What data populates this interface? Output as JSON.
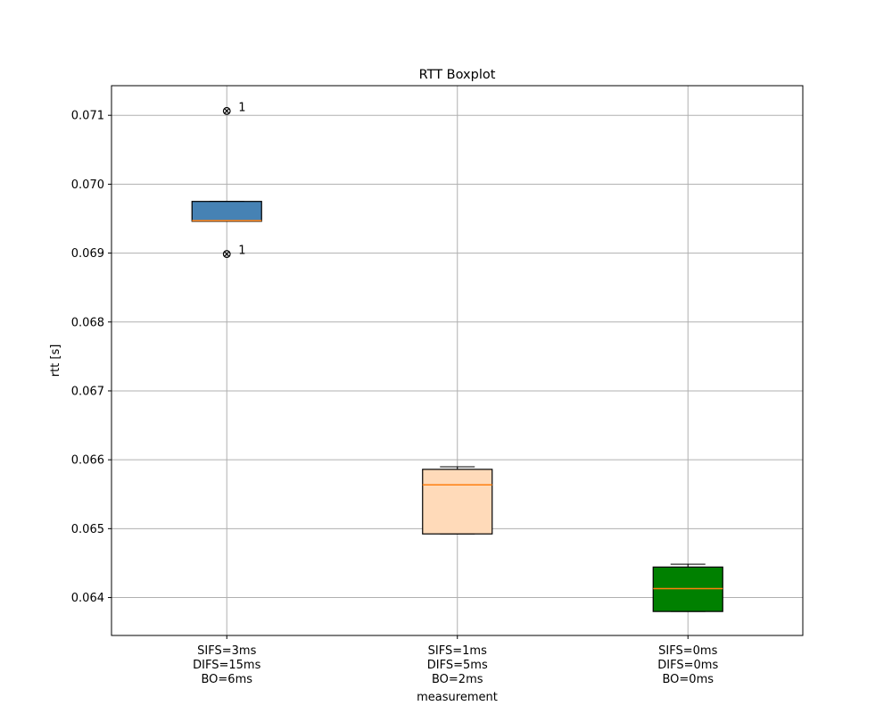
{
  "chart_data": {
    "type": "box",
    "title": "RTT Boxplot",
    "xlabel": "measurement",
    "ylabel": "rtt [s]",
    "ylim": [
      0.06345,
      0.07143
    ],
    "yticks": [
      "0.064",
      "0.065",
      "0.066",
      "0.067",
      "0.068",
      "0.069",
      "0.070",
      "0.071"
    ],
    "ytick_values": [
      0.064,
      0.065,
      0.066,
      0.067,
      0.068,
      0.069,
      0.07,
      0.071
    ],
    "grid": true,
    "categories": [
      [
        "SIFS=3ms",
        "DIFS=15ms",
        "BO=6ms"
      ],
      [
        "SIFS=1ms",
        "DIFS=5ms",
        "BO=2ms"
      ],
      [
        "SIFS=0ms",
        "DIFS=0ms",
        "BO=0ms"
      ]
    ],
    "boxes": [
      {
        "whisker_low": 0.069462,
        "q1": 0.069462,
        "median": 0.069471,
        "q3": 0.06975,
        "whisker_high": 0.06975,
        "fill": "#4682b4",
        "outliers": [
          {
            "value": 0.071063,
            "label": "1"
          },
          {
            "value": 0.068987,
            "label": "1"
          }
        ]
      },
      {
        "whisker_low": 0.064924,
        "q1": 0.064924,
        "median": 0.065636,
        "q3": 0.065861,
        "whisker_high": 0.065898,
        "fill": "#ffdab9",
        "outliers": []
      },
      {
        "whisker_low": 0.063798,
        "q1": 0.063798,
        "median": 0.06413,
        "q3": 0.064443,
        "whisker_high": 0.064485,
        "fill": "#008000",
        "outliers": []
      }
    ],
    "median_color": "#ff7f0e",
    "grid_color": "#b0b0b0"
  }
}
